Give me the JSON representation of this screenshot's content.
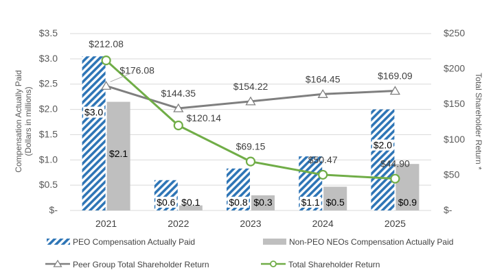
{
  "chart_data": {
    "type": "bar",
    "categories": [
      "2021",
      "2022",
      "2023",
      "2024",
      "2025"
    ],
    "left_axis": {
      "label_line1": "Compensation  Actually Paid",
      "label_line2": "(Dollars in millions)",
      "range": [
        0,
        3.5
      ],
      "ticks": [
        0,
        0.5,
        1.0,
        1.5,
        2.0,
        2.5,
        3.0,
        3.5
      ],
      "tick_labels": [
        "$-",
        "$0.5",
        "$1.0",
        "$1.5",
        "$2.0",
        "$2.5",
        "$3.0",
        "$3.5"
      ]
    },
    "right_axis": {
      "label": "Total  Shareholder Return *",
      "range": [
        0,
        250
      ],
      "ticks": [
        0,
        50,
        100,
        150,
        200,
        250
      ],
      "tick_labels": [
        "$-",
        "$50",
        "$100",
        "$150",
        "$200",
        "$250"
      ]
    },
    "series": [
      {
        "name": "PEO Compensation Actually Paid",
        "axis": "left",
        "kind": "bar",
        "style": "hatch",
        "color": "#2e75b6",
        "values": [
          3.05,
          0.6,
          0.83,
          1.07,
          2.0
        ],
        "labels": [
          "$3.0",
          "$0.6",
          "$0.8",
          "$1.1",
          "$2.0"
        ]
      },
      {
        "name": "Non-PEO NEOs Compensation Actually Paid",
        "axis": "left",
        "kind": "bar",
        "style": "solid",
        "color": "#bfbfbf",
        "values": [
          2.15,
          0.1,
          0.3,
          0.47,
          0.92
        ],
        "labels": [
          "$2.1",
          "$0.1",
          "$0.3",
          "$0.5",
          "$0.9"
        ]
      },
      {
        "name": "Peer Group Total Shareholder Return",
        "axis": "right",
        "kind": "line",
        "marker": "triangle",
        "color": "#7f7f7f",
        "values": [
          176.08,
          144.35,
          154.22,
          164.45,
          169.09
        ],
        "labels": [
          "$176.08",
          "$144.35",
          "$154.22",
          "$164.45",
          "$169.09"
        ]
      },
      {
        "name": "Total Shareholder Return",
        "axis": "right",
        "kind": "line",
        "marker": "circle",
        "color": "#70ad47",
        "values": [
          212.08,
          120.14,
          69.15,
          50.47,
          44.9
        ],
        "labels": [
          "$212.08",
          "$120.14",
          "$69.15",
          "$50.47",
          "$44.90"
        ]
      }
    ],
    "legend_position": "bottom"
  }
}
